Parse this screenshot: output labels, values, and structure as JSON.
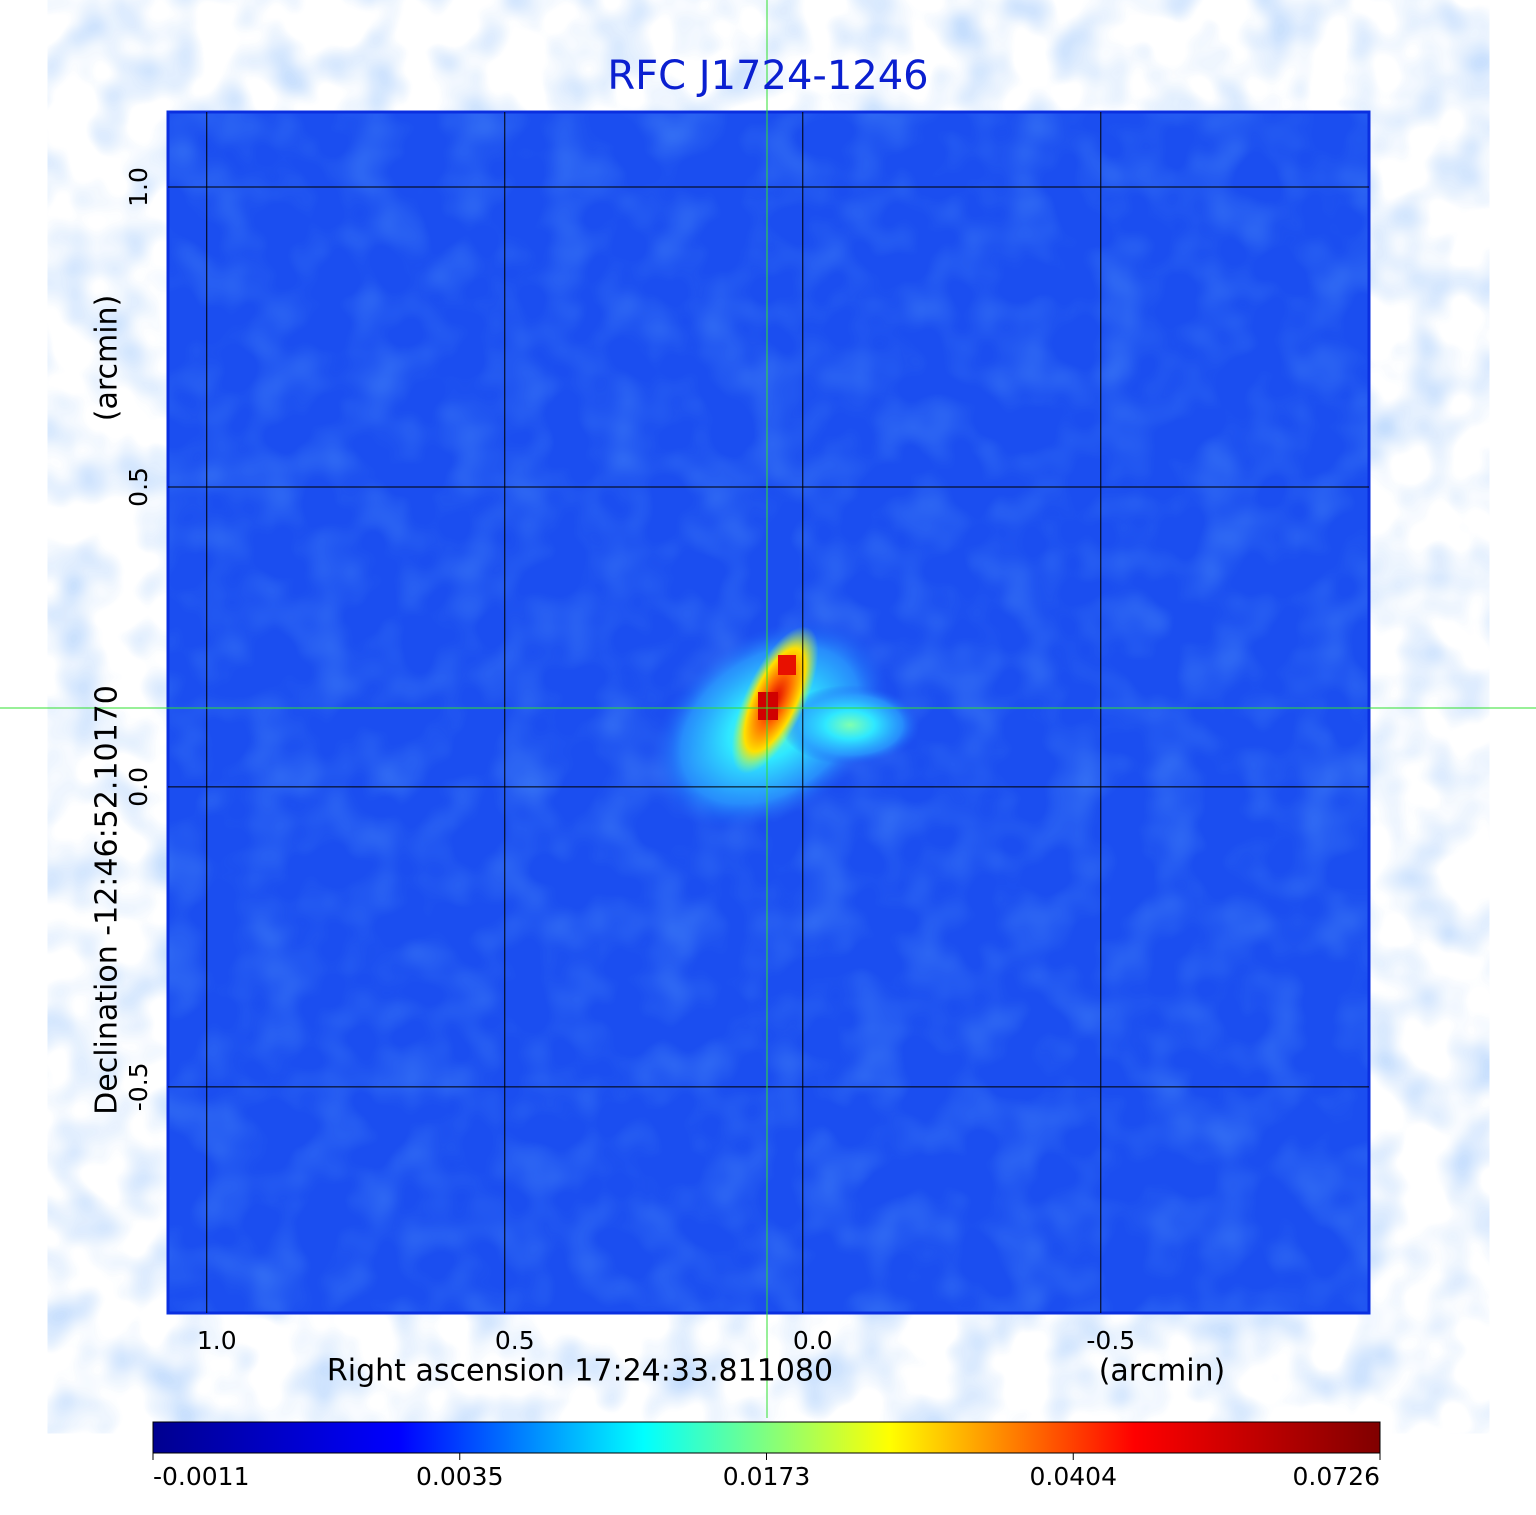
{
  "chart_data": {
    "type": "image",
    "title": "RFC J1724-1246",
    "x_label": "Right ascension  17:24:33.811080",
    "x_unit": "(arcmin)",
    "y_label": "Declination  -12:46:52.10170",
    "y_unit": "(arcmin)",
    "xlim": [
      1.065,
      -0.95
    ],
    "ylim": [
      -0.877,
      1.125
    ],
    "xticks": [
      {
        "value": 1,
        "label": "1.0"
      },
      0.5,
      {
        "value": 0,
        "label": "0.0"
      },
      -0.5
    ],
    "yticks": [
      {
        "value": 1,
        "label": "1.0"
      },
      0.5,
      {
        "value": 0,
        "label": "0.0"
      },
      -0.5
    ],
    "grid": true,
    "colorbar_ticks": [
      -0.0011,
      0.0035,
      0.0173,
      0.0404,
      0.0726
    ],
    "colormap": [
      "#00008f",
      "#0000ff",
      "#00ffff",
      "#ffff00",
      "#ff0000",
      "#800000"
    ]
  }
}
